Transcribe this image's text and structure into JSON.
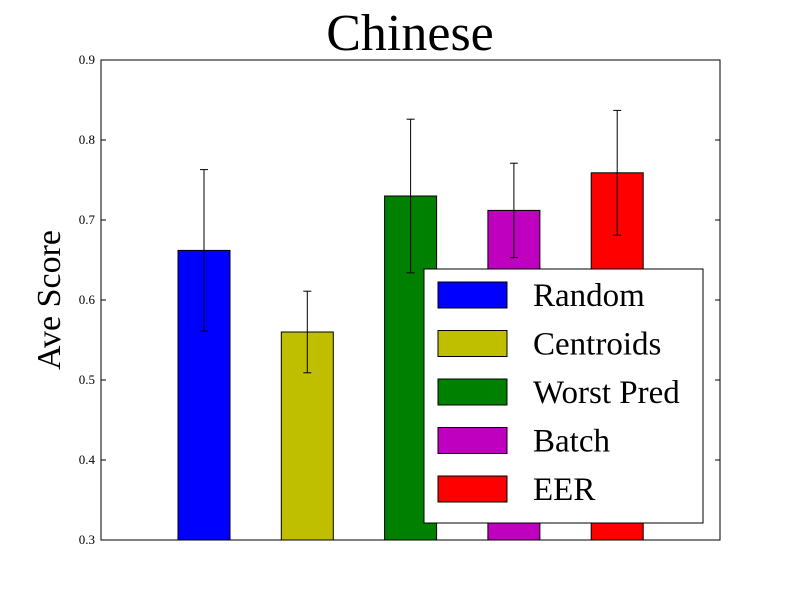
{
  "chart_data": {
    "type": "bar",
    "title": "Chinese",
    "xlabel": "",
    "ylabel": "Ave Score",
    "ylim": [
      0.3,
      0.9
    ],
    "yticks": [
      "0.3",
      "0.4",
      "0.5",
      "0.6",
      "0.7",
      "0.8",
      "0.9"
    ],
    "grid": false,
    "legend_position": "lower-right",
    "series": [
      {
        "name": "Random",
        "value": 0.662,
        "error": 0.101,
        "color": "#0000ff"
      },
      {
        "name": "Centroids",
        "value": 0.56,
        "error": 0.051,
        "color": "#bfbf00"
      },
      {
        "name": "Worst Pred",
        "value": 0.73,
        "error": 0.096,
        "color": "#008000"
      },
      {
        "name": "Batch",
        "value": 0.712,
        "error": 0.059,
        "color": "#bf00bf"
      },
      {
        "name": "EER",
        "value": 0.759,
        "error": 0.078,
        "color": "#ff0000"
      }
    ]
  }
}
